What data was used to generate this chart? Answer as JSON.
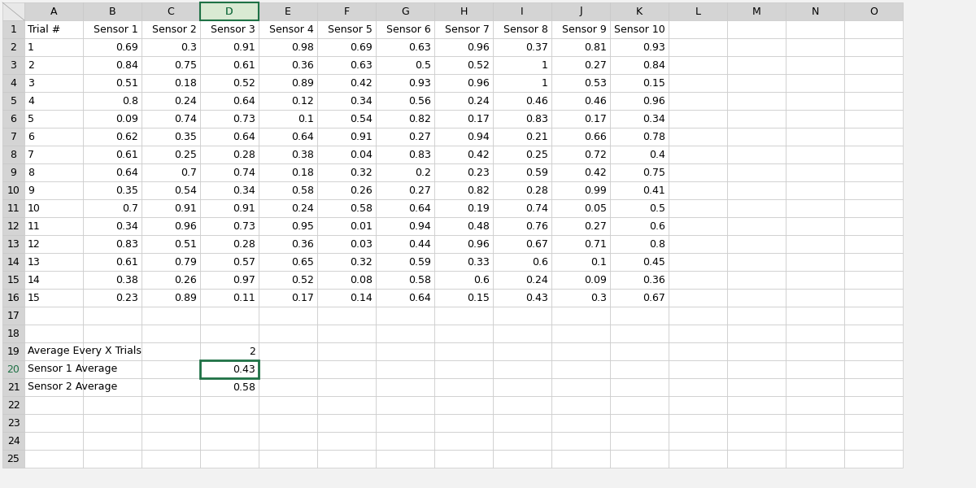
{
  "col_letters": [
    "",
    "A",
    "B",
    "C",
    "D",
    "E",
    "F",
    "G",
    "H",
    "I",
    "J",
    "K",
    "L",
    "M",
    "N",
    "O"
  ],
  "row_numbers": [
    "",
    "1",
    "2",
    "3",
    "4",
    "5",
    "6",
    "7",
    "8",
    "9",
    "10",
    "11",
    "12",
    "13",
    "14",
    "15",
    "16",
    "17",
    "18",
    "19",
    "20",
    "21",
    "22",
    "23",
    "24",
    "25"
  ],
  "header_row": [
    "Trial #",
    "Sensor 1",
    "Sensor 2",
    "Sensor 3",
    "Sensor 4",
    "Sensor 5",
    "Sensor 6",
    "Sensor 7",
    "Sensor 8",
    "Sensor 9",
    "Sensor 10",
    "",
    "",
    "",
    ""
  ],
  "data_rows": [
    [
      "1",
      "0.69",
      "0.3",
      "0.91",
      "0.98",
      "0.69",
      "0.63",
      "0.96",
      "0.37",
      "0.81",
      "0.93",
      "",
      "",
      "",
      ""
    ],
    [
      "2",
      "0.84",
      "0.75",
      "0.61",
      "0.36",
      "0.63",
      "0.5",
      "0.52",
      "1",
      "0.27",
      "0.84",
      "",
      "",
      "",
      ""
    ],
    [
      "3",
      "0.51",
      "0.18",
      "0.52",
      "0.89",
      "0.42",
      "0.93",
      "0.96",
      "1",
      "0.53",
      "0.15",
      "",
      "",
      "",
      ""
    ],
    [
      "4",
      "0.8",
      "0.24",
      "0.64",
      "0.12",
      "0.34",
      "0.56",
      "0.24",
      "0.46",
      "0.46",
      "0.96",
      "",
      "",
      "",
      ""
    ],
    [
      "5",
      "0.09",
      "0.74",
      "0.73",
      "0.1",
      "0.54",
      "0.82",
      "0.17",
      "0.83",
      "0.17",
      "0.34",
      "",
      "",
      "",
      ""
    ],
    [
      "6",
      "0.62",
      "0.35",
      "0.64",
      "0.64",
      "0.91",
      "0.27",
      "0.94",
      "0.21",
      "0.66",
      "0.78",
      "",
      "",
      "",
      ""
    ],
    [
      "7",
      "0.61",
      "0.25",
      "0.28",
      "0.38",
      "0.04",
      "0.83",
      "0.42",
      "0.25",
      "0.72",
      "0.4",
      "",
      "",
      "",
      ""
    ],
    [
      "8",
      "0.64",
      "0.7",
      "0.74",
      "0.18",
      "0.32",
      "0.2",
      "0.23",
      "0.59",
      "0.42",
      "0.75",
      "",
      "",
      "",
      ""
    ],
    [
      "9",
      "0.35",
      "0.54",
      "0.34",
      "0.58",
      "0.26",
      "0.27",
      "0.82",
      "0.28",
      "0.99",
      "0.41",
      "",
      "",
      "",
      ""
    ],
    [
      "10",
      "0.7",
      "0.91",
      "0.91",
      "0.24",
      "0.58",
      "0.64",
      "0.19",
      "0.74",
      "0.05",
      "0.5",
      "",
      "",
      "",
      ""
    ],
    [
      "11",
      "0.34",
      "0.96",
      "0.73",
      "0.95",
      "0.01",
      "0.94",
      "0.48",
      "0.76",
      "0.27",
      "0.6",
      "",
      "",
      "",
      ""
    ],
    [
      "12",
      "0.83",
      "0.51",
      "0.28",
      "0.36",
      "0.03",
      "0.44",
      "0.96",
      "0.67",
      "0.71",
      "0.8",
      "",
      "",
      "",
      ""
    ],
    [
      "13",
      "0.61",
      "0.79",
      "0.57",
      "0.65",
      "0.32",
      "0.59",
      "0.33",
      "0.6",
      "0.1",
      "0.45",
      "",
      "",
      "",
      ""
    ],
    [
      "14",
      "0.38",
      "0.26",
      "0.97",
      "0.52",
      "0.08",
      "0.58",
      "0.6",
      "0.24",
      "0.09",
      "0.36",
      "",
      "",
      "",
      ""
    ],
    [
      "15",
      "0.23",
      "0.89",
      "0.11",
      "0.17",
      "0.14",
      "0.64",
      "0.15",
      "0.43",
      "0.3",
      "0.67",
      "",
      "",
      "",
      ""
    ]
  ],
  "extra_rows": [
    [
      "",
      "",
      "",
      "",
      "",
      "",
      "",
      "",
      "",
      "",
      "",
      "",
      "",
      "",
      ""
    ],
    [
      "",
      "",
      "",
      "",
      "",
      "",
      "",
      "",
      "",
      "",
      "",
      "",
      "",
      "",
      ""
    ],
    [
      "Average Every X Trials",
      "",
      "",
      "2",
      "",
      "",
      "",
      "",
      "",
      "",
      "",
      "",
      "",
      "",
      ""
    ],
    [
      "Sensor 1 Average",
      "",
      "",
      "0.43",
      "",
      "",
      "",
      "",
      "",
      "",
      "",
      "",
      "",
      "",
      ""
    ],
    [
      "Sensor 2 Average",
      "",
      "",
      "0.58",
      "",
      "",
      "",
      "",
      "",
      "",
      "",
      "",
      "",
      "",
      ""
    ],
    [
      "",
      "",
      "",
      "",
      "",
      "",
      "",
      "",
      "",
      "",
      "",
      "",
      "",
      "",
      ""
    ],
    [
      "",
      "",
      "",
      "",
      "",
      "",
      "",
      "",
      "",
      "",
      "",
      "",
      "",
      "",
      ""
    ],
    [
      "",
      "",
      "",
      "",
      "",
      "",
      "",
      "",
      "",
      "",
      "",
      "",
      "",
      "",
      ""
    ],
    [
      "",
      "",
      "",
      "",
      "",
      "",
      "",
      "",
      "",
      "",
      "",
      "",
      "",
      "",
      ""
    ]
  ],
  "header_bg": "#D4D4D4",
  "data_bg": "#FFFFFF",
  "selected_cell_border": "#1E7145",
  "selected_row_num_color": "#1E7145",
  "selected_col_header_bg": "#D9EAD3",
  "grid_color": "#C8C8C8",
  "font_size": 9.0,
  "figure_bg": "#F2F2F2",
  "corner_bg": "#E8E8E8"
}
